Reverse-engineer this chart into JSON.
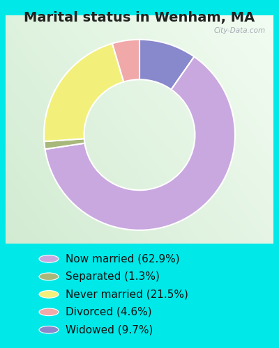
{
  "title": "Marital status in Wenham, MA",
  "slices": [
    62.9,
    1.3,
    21.5,
    4.6,
    9.7
  ],
  "colors": [
    "#c9a8e0",
    "#a8b87a",
    "#f2f07a",
    "#f0a8a8",
    "#8888cc"
  ],
  "labels": [
    "Now married (62.9%)",
    "Separated (1.3%)",
    "Never married (21.5%)",
    "Divorced (4.6%)",
    "Widowed (9.7%)"
  ],
  "legend_colors": [
    "#c9a8e0",
    "#a8b87a",
    "#f2f07a",
    "#f0a8a8",
    "#8888cc"
  ],
  "bg_outer": "#00e8e8",
  "watermark": "City-Data.com",
  "title_fontsize": 14,
  "legend_fontsize": 11,
  "wedge_order": [
    4,
    0,
    1,
    2,
    3
  ]
}
